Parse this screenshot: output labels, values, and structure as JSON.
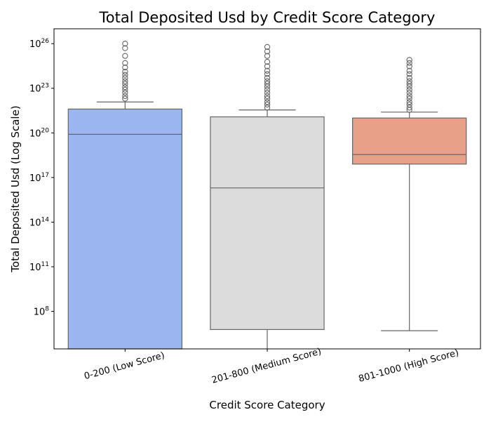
{
  "chart_data": {
    "type": "box",
    "title": "Total Deposited Usd by Credit Score Category",
    "xlabel": "Credit Score Category",
    "ylabel": "Total Deposited Usd (Log Scale)",
    "yscale": "log",
    "ylim": [
      300000.0,
      1e+27
    ],
    "yticks": [
      {
        "value": 100000000.0,
        "base": "10",
        "exp": "8"
      },
      {
        "value": 100000000000.0,
        "base": "10",
        "exp": "11"
      },
      {
        "value": 100000000000000.0,
        "base": "10",
        "exp": "14"
      },
      {
        "value": 1e+17,
        "base": "10",
        "exp": "17"
      },
      {
        "value": 1e+20,
        "base": "10",
        "exp": "20"
      },
      {
        "value": 1e+23,
        "base": "10",
        "exp": "23"
      },
      {
        "value": 1e+26,
        "base": "10",
        "exp": "26"
      }
    ],
    "categories": [
      "0-200 (Low Score)",
      "201-800 (Medium Score)",
      "801-1000 (High Score)"
    ],
    "boxes": [
      {
        "category": "0-200 (Low Score)",
        "color": "#9bb5f1",
        "whisker_low": 300000.0,
        "q1": 300000.0,
        "median": 8e+19,
        "q3": 4e+21,
        "whisker_high": 1.2e+22,
        "outliers": [
          2e+22,
          3e+22,
          5e+22,
          8e+22,
          1.2e+23,
          2e+23,
          3e+23,
          5e+23,
          8e+23,
          1.3e+24,
          2.5e+24,
          5e+24,
          1.5e+25,
          5e+25,
          1e+26
        ]
      },
      {
        "category": "201-800 (Medium Score)",
        "color": "#dcdcdc",
        "whisker_low": 300000.0,
        "q1": 6000000.0,
        "median": 2e+16,
        "q3": 1.2e+21,
        "whisker_high": 3.5e+21,
        "outliers": [
          5e+21,
          8e+21,
          1.2e+22,
          2e+22,
          3e+22,
          5e+22,
          8e+22,
          1.3e+23,
          2e+23,
          3e+23,
          5e+23,
          9e+23,
          1.5e+24,
          3e+24,
          6e+24,
          1.5e+25,
          3e+25,
          6e+25
        ]
      },
      {
        "category": "801-1000 (High Score)",
        "color": "#e8a088",
        "whisker_low": 5000000.0,
        "q1": 8e+17,
        "median": 3.5e+18,
        "q3": 1e+21,
        "whisker_high": 2.5e+21,
        "outliers": [
          3.5e+21,
          5e+21,
          8e+21,
          1.2e+22,
          2e+22,
          3e+22,
          5e+22,
          8e+22,
          1.3e+23,
          2e+23,
          3e+23,
          5e+23,
          9e+23,
          1.5e+24,
          3e+24,
          5e+24,
          8e+24
        ]
      }
    ],
    "grid": false,
    "legend": "none"
  }
}
